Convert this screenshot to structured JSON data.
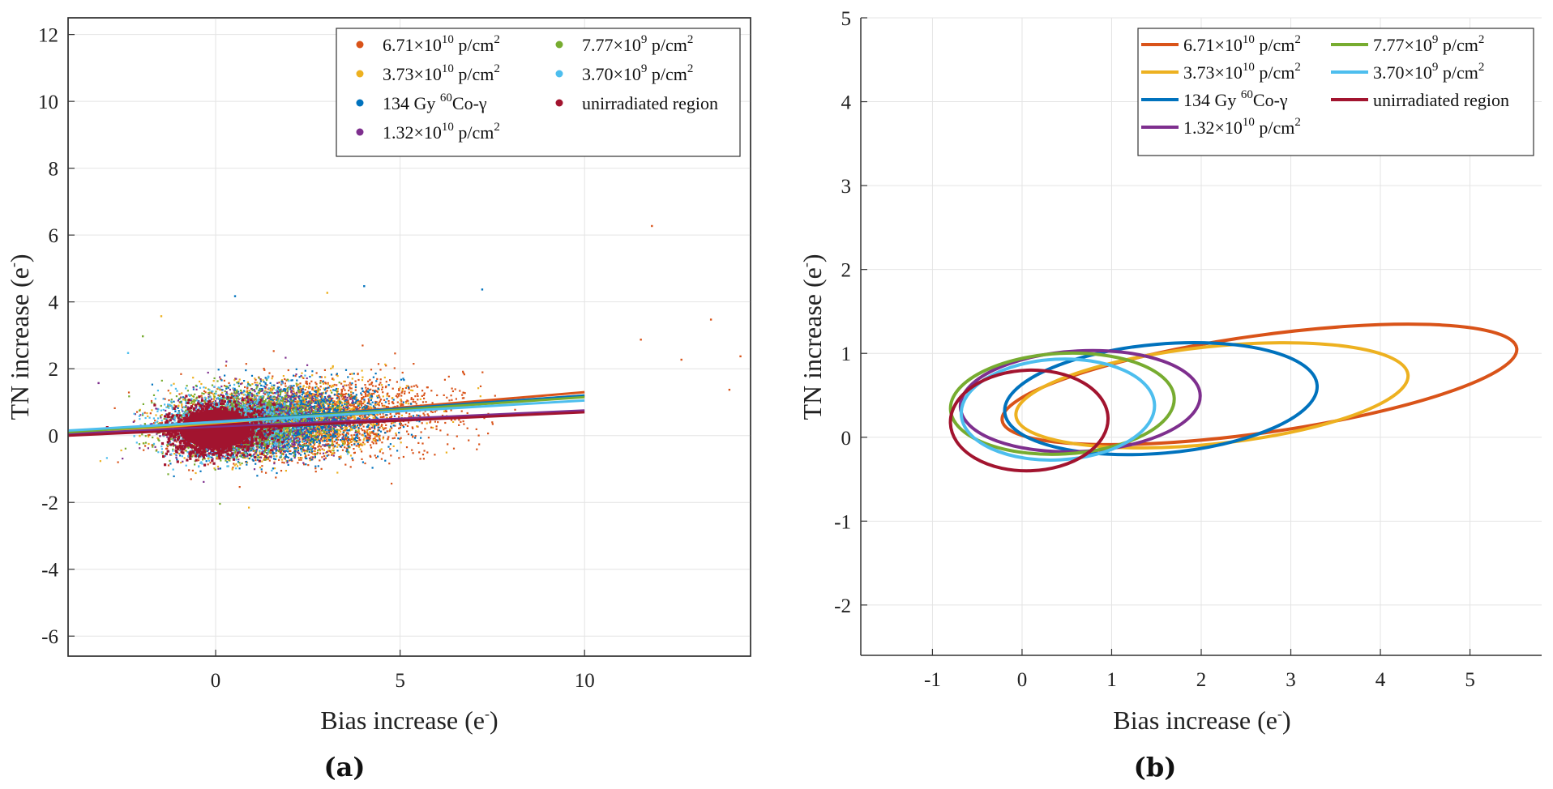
{
  "chart_data": [
    {
      "type": "scatter",
      "panel_label": "(a)",
      "xlabel": "Bias increase (e",
      "xlabel_sup": "-",
      "xlabel_close": ")",
      "ylabel": "TN increase (e",
      "ylabel_sup": "-",
      "ylabel_close": ")",
      "xlim": [
        -4,
        14.5
      ],
      "ylim": [
        -6.6,
        12.5
      ],
      "xticks": [
        0,
        5,
        10
      ],
      "yticks": [
        -6,
        -4,
        -2,
        0,
        2,
        4,
        6,
        8,
        10,
        12
      ],
      "grid": true,
      "legend": "top-right",
      "series": [
        {
          "name": "6.71×10^10 p/cm^2",
          "color": "#D95319",
          "center": [
            2.5,
            0.5
          ],
          "spread": [
            2.7,
            0.9
          ],
          "count": 2600,
          "fit": [
            [
              -4,
              0.0
            ],
            [
              10,
              1.3
            ]
          ],
          "outliers": [
            [
              11.8,
              6.3
            ],
            [
              13.4,
              3.5
            ],
            [
              14.2,
              2.4
            ],
            [
              12.6,
              2.3
            ],
            [
              11.5,
              2.9
            ],
            [
              13.9,
              1.4
            ]
          ]
        },
        {
          "name": "3.73×10^10 p/cm^2",
          "color": "#EDB120",
          "center": [
            1.7,
            0.45
          ],
          "spread": [
            2.3,
            0.85
          ],
          "count": 1700,
          "fit": [
            [
              -4,
              0.05
            ],
            [
              10,
              1.2
            ]
          ],
          "outliers": [
            [
              3.0,
              4.3
            ],
            [
              -1.5,
              3.6
            ]
          ]
        },
        {
          "name": "134 Gy 60Co-γ",
          "color": "#0072BD",
          "center": [
            1.8,
            0.45
          ],
          "spread": [
            2.1,
            0.85
          ],
          "count": 1700,
          "fit": [
            [
              -4,
              0.1
            ],
            [
              10,
              1.2
            ]
          ],
          "outliers": [
            [
              7.2,
              4.4
            ],
            [
              4.0,
              4.5
            ],
            [
              0.5,
              4.2
            ]
          ]
        },
        {
          "name": "1.32×10^10 p/cm^2",
          "color": "#7E2F8E",
          "center": [
            0.9,
            0.4
          ],
          "spread": [
            1.8,
            0.8
          ],
          "count": 1200,
          "fit": [
            [
              -4,
              0.05
            ],
            [
              10,
              0.75
            ]
          ],
          "outliers": [
            [
              -3.2,
              1.6
            ]
          ]
        },
        {
          "name": "7.77×10^9 p/cm^2",
          "color": "#77AC30",
          "center": [
            0.7,
            0.4
          ],
          "spread": [
            1.7,
            0.8
          ],
          "count": 1200,
          "fit": [
            [
              -4,
              0.1
            ],
            [
              10,
              1.15
            ]
          ],
          "outliers": [
            [
              -2.0,
              3.0
            ]
          ]
        },
        {
          "name": "3.70×10^9 p/cm^2",
          "color": "#4DBEEE",
          "center": [
            0.4,
            0.35
          ],
          "spread": [
            1.6,
            0.75
          ],
          "count": 1100,
          "fit": [
            [
              -4,
              0.15
            ],
            [
              10,
              1.05
            ]
          ],
          "outliers": [
            [
              -2.4,
              2.5
            ]
          ]
        },
        {
          "name": "unirradiated region",
          "color": "#A2142F",
          "center": [
            0.0,
            0.2
          ],
          "spread": [
            1.0,
            0.55
          ],
          "count": 1600,
          "fit": [
            [
              -4,
              0.0
            ],
            [
              10,
              0.7
            ]
          ],
          "outliers": []
        }
      ]
    },
    {
      "type": "line",
      "panel_label": "(b)",
      "xlabel": "Bias increase (e",
      "xlabel_sup": "-",
      "xlabel_close": ")",
      "ylabel": "TN increase (e",
      "ylabel_sup": "-",
      "ylabel_close": ")",
      "xlim": [
        -1.8,
        5.8
      ],
      "ylim": [
        -2.6,
        5
      ],
      "xticks": [
        -1,
        0,
        1,
        2,
        3,
        4,
        5
      ],
      "yticks": [
        -2,
        -1,
        0,
        1,
        2,
        3,
        4,
        5
      ],
      "grid": true,
      "legend": "top-right",
      "description": "confidence ellipses: center (cx, cy), semi-axes (a, b) and tilt in data units",
      "series": [
        {
          "name": "6.71×10^10 p/cm^2",
          "color": "#D95319",
          "cx": 2.65,
          "cy": 0.63,
          "a": 2.9,
          "b": 0.58,
          "tilt_deg": 8
        },
        {
          "name": "3.73×10^10 p/cm^2",
          "color": "#EDB120",
          "cx": 2.12,
          "cy": 0.5,
          "a": 2.2,
          "b": 0.58,
          "tilt_deg": 6
        },
        {
          "name": "134 Gy 60Co-γ",
          "color": "#0072BD",
          "cx": 1.55,
          "cy": 0.46,
          "a": 1.75,
          "b": 0.65,
          "tilt_deg": 5
        },
        {
          "name": "1.32×10^10 p/cm^2",
          "color": "#7E2F8E",
          "cx": 0.65,
          "cy": 0.43,
          "a": 1.34,
          "b": 0.6,
          "tilt_deg": 3
        },
        {
          "name": "7.77×10^9 p/cm^2",
          "color": "#77AC30",
          "cx": 0.45,
          "cy": 0.4,
          "a": 1.25,
          "b": 0.6,
          "tilt_deg": 3
        },
        {
          "name": "3.70×10^9 p/cm^2",
          "color": "#4DBEEE",
          "cx": 0.4,
          "cy": 0.33,
          "a": 1.08,
          "b": 0.6,
          "tilt_deg": 3
        },
        {
          "name": "unirradiated region",
          "color": "#A2142F",
          "cx": 0.08,
          "cy": 0.2,
          "a": 0.88,
          "b": 0.6,
          "tilt_deg": 2
        }
      ]
    }
  ],
  "legend": {
    "entries": [
      {
        "base": "6.71×10",
        "sup": "10",
        "mid": " p/cm",
        "sup2": "2",
        "color": "#D95319"
      },
      {
        "base": "3.73×10",
        "sup": "10",
        "mid": " p/cm",
        "sup2": "2",
        "color": "#EDB120"
      },
      {
        "base": "134 Gy ",
        "sup": "60",
        "mid": "Co-γ",
        "sup2": "",
        "color": "#0072BD"
      },
      {
        "base": "1.32×10",
        "sup": "10",
        "mid": " p/cm",
        "sup2": "2",
        "color": "#7E2F8E"
      },
      {
        "base": "7.77×10",
        "sup": "9",
        "mid": " p/cm",
        "sup2": "2",
        "color": "#77AC30"
      },
      {
        "base": "3.70×10",
        "sup": "9",
        "mid": " p/cm",
        "sup2": "2",
        "color": "#4DBEEE"
      },
      {
        "base": "unirradiated region",
        "sup": "",
        "mid": "",
        "sup2": "",
        "color": "#A2142F"
      }
    ]
  }
}
